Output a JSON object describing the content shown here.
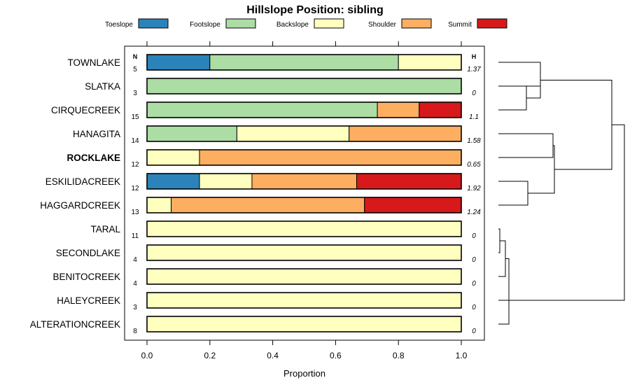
{
  "chart_data": {
    "type": "bar",
    "orientation": "horizontal-stacked",
    "title": "Hillslope Position: sibling",
    "xlabel": "Proportion",
    "xlim": [
      0,
      1
    ],
    "ticks": [
      "0.0",
      "0.2",
      "0.4",
      "0.6",
      "0.8",
      "1.0"
    ],
    "tick_values": [
      0,
      0.2,
      0.4,
      0.6,
      0.8,
      1.0
    ],
    "n_header": "N",
    "h_header": "H",
    "legend_position": "top",
    "categories": [
      "Toeslope",
      "Footslope",
      "Backslope",
      "Shoulder",
      "Summit"
    ],
    "colors": [
      "#2B83BA",
      "#ABDDA4",
      "#FFFFBF",
      "#FDAE61",
      "#D7191C"
    ],
    "rows": [
      {
        "name": "TOWNLAKE",
        "n": "5",
        "h": "1.37",
        "bold": false,
        "values": [
          0.2,
          0.6,
          0.2,
          0,
          0
        ]
      },
      {
        "name": "SLATKA",
        "n": "3",
        "h": "0",
        "bold": false,
        "values": [
          0,
          1.0,
          0,
          0,
          0
        ]
      },
      {
        "name": "CIRQUECREEK",
        "n": "15",
        "h": "1.1",
        "bold": false,
        "values": [
          0,
          0.733,
          0,
          0.133,
          0.134
        ]
      },
      {
        "name": "HANAGITA",
        "n": "14",
        "h": "1.58",
        "bold": false,
        "values": [
          0,
          0.286,
          0.357,
          0.357,
          0
        ]
      },
      {
        "name": "ROCKLAKE",
        "n": "12",
        "h": "0.65",
        "bold": true,
        "values": [
          0,
          0,
          0.167,
          0.833,
          0
        ]
      },
      {
        "name": "ESKILIDACREEK",
        "n": "12",
        "h": "1.92",
        "bold": false,
        "values": [
          0.167,
          0,
          0.167,
          0.333,
          0.333
        ]
      },
      {
        "name": "HAGGARDCREEK",
        "n": "13",
        "h": "1.24",
        "bold": false,
        "values": [
          0,
          0,
          0.077,
          0.615,
          0.308
        ]
      },
      {
        "name": "TARAL",
        "n": "11",
        "h": "0",
        "bold": false,
        "values": [
          0,
          0,
          1.0,
          0,
          0
        ]
      },
      {
        "name": "SECONDLAKE",
        "n": "4",
        "h": "0",
        "bold": false,
        "values": [
          0,
          0,
          1.0,
          0,
          0
        ]
      },
      {
        "name": "BENITOCREEK",
        "n": "4",
        "h": "0",
        "bold": false,
        "values": [
          0,
          0,
          1.0,
          0,
          0
        ]
      },
      {
        "name": "HALEYCREEK",
        "n": "3",
        "h": "0",
        "bold": false,
        "values": [
          0,
          0,
          1.0,
          0,
          0
        ]
      },
      {
        "name": "ALTERATIONCREEK",
        "n": "8",
        "h": "0",
        "bold": false,
        "values": [
          0,
          0,
          1.0,
          0,
          0
        ]
      }
    ],
    "dendrogram": "hierarchical clustering of rows shown at right"
  }
}
